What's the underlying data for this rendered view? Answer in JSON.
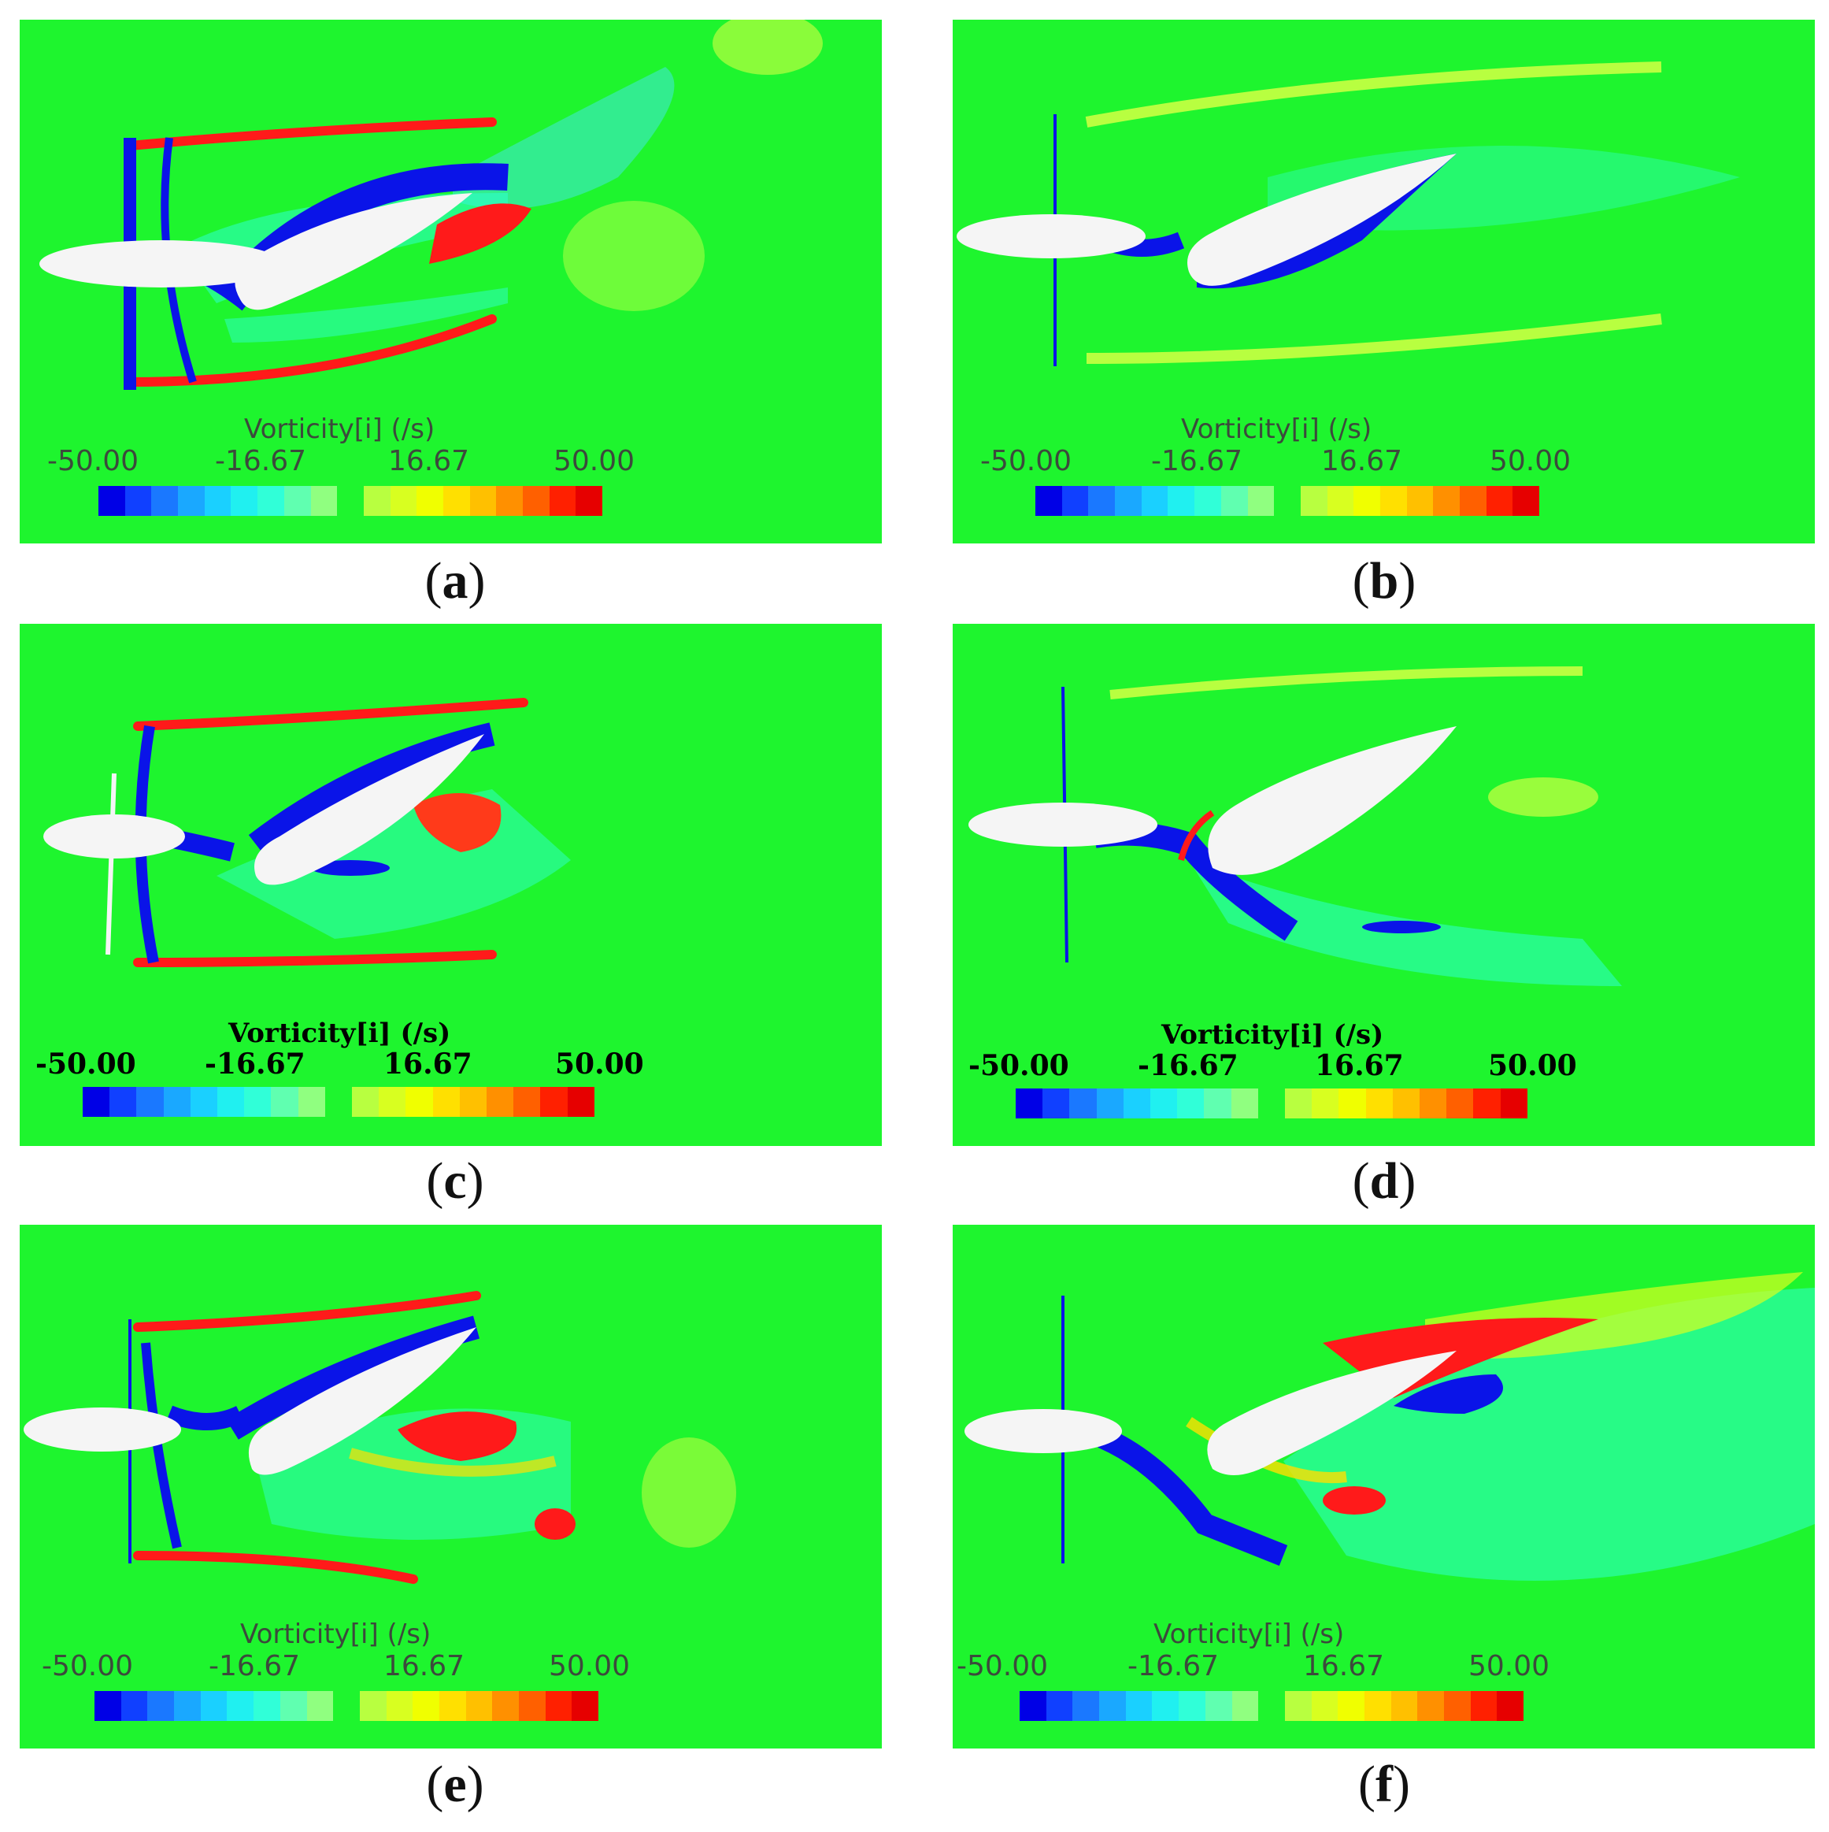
{
  "panels": [
    {
      "caption_letter": "a",
      "legend": {
        "title": "Vorticity[i] (/s)",
        "ticks": [
          "-50.00",
          "-16.67",
          "16.67",
          "50.00"
        ]
      }
    },
    {
      "caption_letter": "b",
      "legend": {
        "title": "Vorticity[i] (/s)",
        "ticks": [
          "-50.00",
          "-16.67",
          "16.67",
          "50.00"
        ]
      }
    },
    {
      "caption_letter": "c",
      "legend": {
        "title": "Vorticity[i] (/s)",
        "ticks": [
          "-50.00",
          "-16.67",
          "16.67",
          "50.00"
        ]
      }
    },
    {
      "caption_letter": "d",
      "legend": {
        "title": "Vorticity[i] (/s)",
        "ticks": [
          "-50.00",
          "-16.67",
          "16.67",
          "50.00"
        ]
      }
    },
    {
      "caption_letter": "e",
      "legend": {
        "title": "Vorticity[i] (/s)",
        "ticks": [
          "-50.00",
          "-16.67",
          "16.67",
          "50.00"
        ]
      }
    },
    {
      "caption_letter": "f",
      "legend": {
        "title": "Vorticity[i] (/s)",
        "ticks": [
          "-50.00",
          "-16.67",
          "16.67",
          "50.00"
        ]
      }
    }
  ],
  "colormap": [
    "#0000e6",
    "#1040ff",
    "#1a78ff",
    "#1aa8ff",
    "#1ad0ff",
    "#20f0f0",
    "#30ffd8",
    "#60ffb0",
    "#90ff80",
    "#b8ff40",
    "#d8ff20",
    "#f0ff00",
    "#ffe000",
    "#ffc000",
    "#ff9000",
    "#ff6000",
    "#ff2000",
    "#e60000"
  ],
  "colors": {
    "background_green": "#1ef52e",
    "negative_vorticity": "#0a14e8",
    "positive_vorticity": "#ff1a1a",
    "solid_body": "#f5f5f5"
  }
}
